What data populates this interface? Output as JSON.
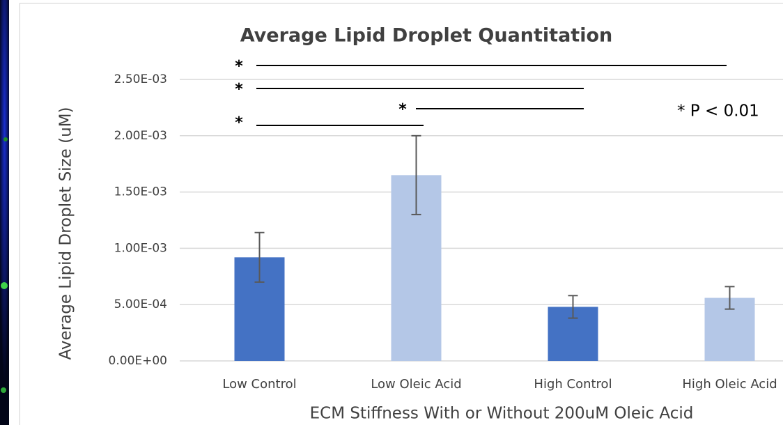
{
  "chart_data": {
    "type": "bar",
    "title": "Average Lipid Droplet Quantitation",
    "y_label": "Average Lipid Droplet Size (uM)",
    "x_label": "ECM Stiffness With or Without 200uM Oleic Acid",
    "categories": [
      "Low Control",
      "Low Oleic Acid",
      "High Control",
      "High Oleic Acid"
    ],
    "values": [
      0.00092,
      0.00165,
      0.00048,
      0.00056
    ],
    "errors": [
      0.00022,
      0.00035,
      0.0001,
      0.0001
    ],
    "colors": [
      "#4472c4",
      "#b4c7e7",
      "#4472c4",
      "#b4c7e7"
    ],
    "ylim": [
      0,
      0.0025
    ],
    "yticks": [
      {
        "value": 0,
        "label": "0.00E+00"
      },
      {
        "value": 0.0005,
        "label": "5.00E-04"
      },
      {
        "value": 0.001,
        "label": "1.00E-03"
      },
      {
        "value": 0.0015,
        "label": "1.50E-03"
      },
      {
        "value": 0.002,
        "label": "2.00E-03"
      },
      {
        "value": 0.0025,
        "label": "2.50E-03"
      }
    ],
    "grid": true,
    "annotations": [
      "*",
      "*",
      "*",
      "*",
      "* P < 0.01"
    ]
  }
}
